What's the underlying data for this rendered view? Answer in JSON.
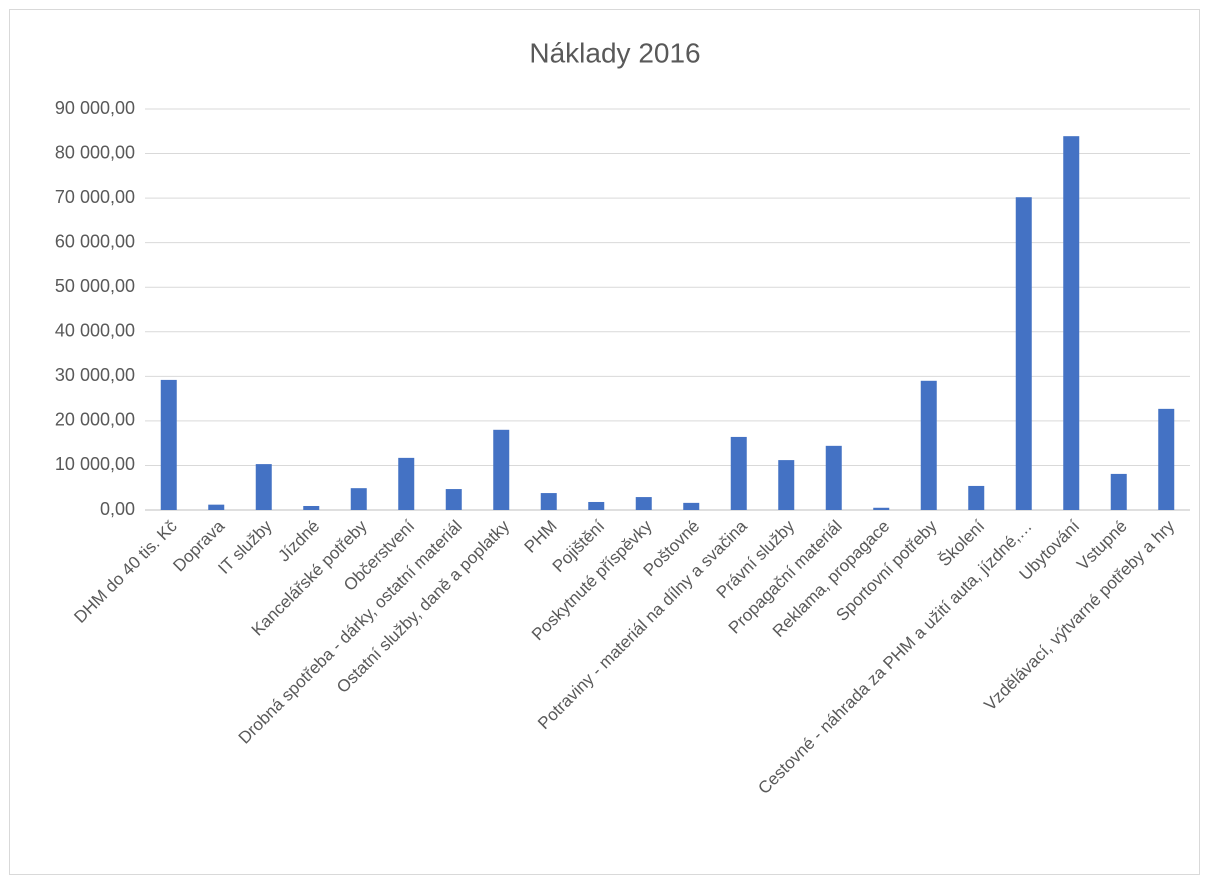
{
  "chart_data": {
    "type": "bar",
    "title": "Náklady 2016",
    "categories": [
      "DHM do 40 tis. Kč",
      "Doprava",
      "IT služby",
      "Jízdné",
      "Kancelářské potřeby",
      "Občerstvení",
      "Drobná spotřeba - dárky, ostatní materiál",
      "Ostatní služby, daně a poplatky",
      "PHM",
      "Pojištění",
      "Poskytnuté příspěvky",
      "Poštovné",
      "Potraviny - materiál na dílny a svačina",
      "Právní služby",
      "Propagační materiál",
      "Reklama, propagace",
      "Sportovní potřeby",
      "Školení",
      "Cestovné - náhrada za PHM a užití auta, jízdné,…",
      "Ubytování",
      "Vstupné",
      "Vzdělávací, výtvarné potřeby a hry"
    ],
    "values": [
      29200,
      1200,
      10300,
      900,
      4900,
      11700,
      4700,
      18000,
      3800,
      1800,
      2900,
      1600,
      16400,
      11200,
      14400,
      500,
      29000,
      5400,
      70200,
      83900,
      8100,
      22700
    ],
    "color": "#4472c4",
    "ylim": [
      0,
      90000
    ],
    "yticks": [
      {
        "value": 0,
        "label": "0,00"
      },
      {
        "value": 10000,
        "label": "10 000,00"
      },
      {
        "value": 20000,
        "label": "20 000,00"
      },
      {
        "value": 30000,
        "label": "30 000,00"
      },
      {
        "value": 40000,
        "label": "40 000,00"
      },
      {
        "value": 50000,
        "label": "50 000,00"
      },
      {
        "value": 60000,
        "label": "60 000,00"
      },
      {
        "value": 70000,
        "label": "70 000,00"
      },
      {
        "value": 80000,
        "label": "80 000,00"
      },
      {
        "value": 90000,
        "label": "90 000,00"
      }
    ],
    "grid": true
  }
}
